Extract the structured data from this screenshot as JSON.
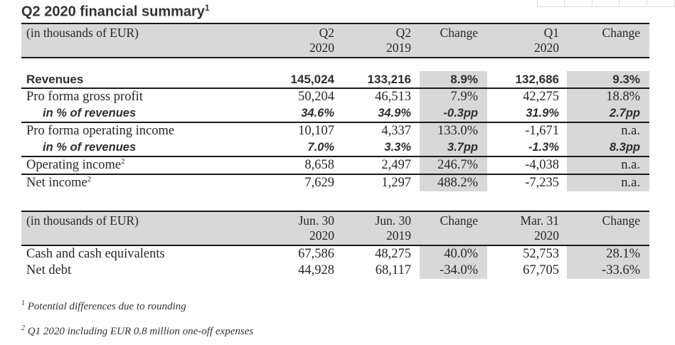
{
  "page": {
    "title": "Q2 2020 financial summary",
    "title_superscript": "1"
  },
  "colors": {
    "header_bg": "#d8d8d8",
    "change_column_bg": "#d8d8d8",
    "rule_color": "#1a1a1a",
    "text_color": "#272727"
  },
  "table1": {
    "unit_label": "(in thousands of EUR)",
    "columns": [
      {
        "line1": "Q2",
        "line2": "2020"
      },
      {
        "line1": "Q2",
        "line2": "2019"
      },
      {
        "line1": "Change",
        "line2": ""
      },
      {
        "line1": "Q1",
        "line2": "2020"
      },
      {
        "line1": "Change",
        "line2": ""
      }
    ],
    "rows": [
      {
        "label": "Revenues",
        "sup": "",
        "style": "bold",
        "border_bottom": true,
        "values": [
          "145,024",
          "133,216",
          "8.9%",
          "132,686",
          "9.3%"
        ]
      },
      {
        "label": "Pro forma gross profit",
        "sup": "",
        "style": "normal",
        "border_bottom": false,
        "values": [
          "50,204",
          "46,513",
          "7.9%",
          "42,275",
          "18.8%"
        ]
      },
      {
        "label": "in % of revenues",
        "sup": "",
        "style": "italic",
        "border_bottom": true,
        "values": [
          "34.6%",
          "34.9%",
          "-0.3pp",
          "31.9%",
          "2.7pp"
        ]
      },
      {
        "label": "Pro forma operating income",
        "sup": "",
        "style": "normal",
        "border_bottom": false,
        "values": [
          "10,107",
          "4,337",
          "133.0%",
          "-1,671",
          "n.a."
        ]
      },
      {
        "label": "in % of revenues",
        "sup": "",
        "style": "italic",
        "border_bottom": true,
        "values": [
          "7.0%",
          "3.3%",
          "3.7pp",
          "-1.3%",
          "8.3pp"
        ]
      },
      {
        "label": "Operating income",
        "sup": "2",
        "style": "normal",
        "border_bottom": true,
        "values": [
          "8,658",
          "2,497",
          "246.7%",
          "-4,038",
          "n.a."
        ]
      },
      {
        "label": "Net income",
        "sup": "2",
        "style": "normal",
        "border_bottom": false,
        "values": [
          "7,629",
          "1,297",
          "488.2%",
          "-7,235",
          "n.a."
        ]
      }
    ]
  },
  "table2": {
    "unit_label": "(in thousands of EUR)",
    "columns": [
      {
        "line1": "Jun. 30",
        "line2": "2020"
      },
      {
        "line1": "Jun. 30",
        "line2": "2019"
      },
      {
        "line1": "Change",
        "line2": ""
      },
      {
        "line1": "Mar. 31",
        "line2": "2020"
      },
      {
        "line1": "Change",
        "line2": ""
      }
    ],
    "rows": [
      {
        "label": "Cash and cash equivalents",
        "sup": "",
        "style": "normal",
        "border_bottom": false,
        "values": [
          "67,586",
          "48,275",
          "40.0%",
          "52,753",
          "28.1%"
        ]
      },
      {
        "label": "Net debt",
        "sup": "",
        "style": "normal",
        "border_bottom": false,
        "values": [
          "44,928",
          "68,117",
          "-34.0%",
          "67,705",
          "-33.6%"
        ]
      }
    ]
  },
  "footnotes": [
    {
      "marker": "1",
      "text": "Potential differences due to rounding"
    },
    {
      "marker": "2",
      "text": "Q1 2020 including EUR 0.8 million one-off expenses"
    }
  ]
}
